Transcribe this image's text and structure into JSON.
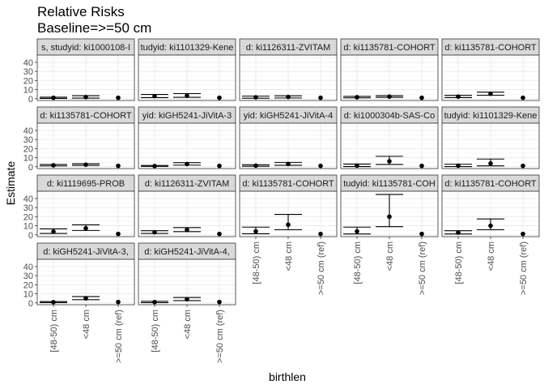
{
  "chart_data": {
    "type": "scatter",
    "title": "Relative Risks",
    "subtitle": "Baseline=>=50 cm",
    "xlabel": "birthlen",
    "ylabel": "Estimate",
    "categories": [
      "[48-50) cm",
      "<48 cm",
      ">=50 cm (ref)"
    ],
    "y_ticks": [
      0,
      10,
      20,
      30,
      40
    ],
    "ylim": [
      -2,
      48
    ],
    "grid": true,
    "panels": [
      {
        "label": "s, studyid: ki1000108-I",
        "estimate": [
          1.0,
          1.8,
          1.0
        ],
        "lower": [
          0.3,
          0.6,
          1.0
        ],
        "upper": [
          1.6,
          3.3,
          1.0
        ]
      },
      {
        "label": "tudyid: ki1101329-Kene",
        "estimate": [
          2.8,
          3.2,
          1.0
        ],
        "lower": [
          1.2,
          1.5,
          1.0
        ],
        "upper": [
          4.6,
          5.6,
          1.0
        ]
      },
      {
        "label": "d: ki1126311-ZVITAM",
        "estimate": [
          1.5,
          1.9,
          1.0
        ],
        "lower": [
          0.5,
          0.8,
          1.0
        ],
        "upper": [
          2.8,
          3.2,
          1.0
        ]
      },
      {
        "label": "d: ki1135781-COHORT",
        "estimate": [
          1.6,
          2.3,
          1.0
        ],
        "lower": [
          0.9,
          1.5,
          1.0
        ],
        "upper": [
          2.5,
          3.3,
          1.0
        ]
      },
      {
        "label": "d: ki1135781-COHORT",
        "estimate": [
          2.3,
          5.4,
          1.0
        ],
        "lower": [
          1.2,
          3.8,
          1.0
        ],
        "upper": [
          3.6,
          7.2,
          1.0
        ]
      },
      {
        "label": "d: ki1135781-COHORT",
        "estimate": [
          1.6,
          2.3,
          1.0
        ],
        "lower": [
          0.9,
          1.5,
          1.0
        ],
        "upper": [
          2.5,
          3.3,
          1.0
        ]
      },
      {
        "label": "yid: kiGH5241-JiVitA-3",
        "estimate": [
          0.8,
          3.0,
          1.0
        ],
        "lower": [
          0.4,
          1.8,
          1.0
        ],
        "upper": [
          1.4,
          4.5,
          1.0
        ]
      },
      {
        "label": "yid: kiGH5241-JiVitA-4",
        "estimate": [
          1.2,
          3.0,
          1.0
        ],
        "lower": [
          0.5,
          1.6,
          1.0
        ],
        "upper": [
          2.2,
          4.8,
          1.0
        ]
      },
      {
        "label": "d: ki1000304b-SAS-Co",
        "estimate": [
          1.2,
          6.0,
          1.0
        ],
        "lower": [
          0.2,
          2.5,
          1.0
        ],
        "upper": [
          3.0,
          11.5,
          1.0
        ]
      },
      {
        "label": "tudyid: ki1101329-Kene",
        "estimate": [
          1.2,
          3.6,
          1.0
        ],
        "lower": [
          0.2,
          1.0,
          1.0
        ],
        "upper": [
          2.8,
          8.5,
          1.0
        ]
      },
      {
        "label": "d: ki1119695-PROB",
        "estimate": [
          3.5,
          7.2,
          1.0
        ],
        "lower": [
          1.5,
          4.8,
          1.0
        ],
        "upper": [
          6.5,
          11.0,
          1.0
        ]
      },
      {
        "label": "d: ki1126311-ZVITAM",
        "estimate": [
          2.8,
          5.5,
          1.0
        ],
        "lower": [
          1.5,
          3.5,
          1.0
        ],
        "upper": [
          4.5,
          8.0,
          1.0
        ]
      },
      {
        "label": "d: ki1135781-COHORT",
        "estimate": [
          3.8,
          11.2,
          1.0
        ],
        "lower": [
          1.2,
          5.6,
          1.0
        ],
        "upper": [
          8.5,
          22.5,
          1.0
        ]
      },
      {
        "label": "tudyid: ki1135781-COH",
        "estimate": [
          3.8,
          20.0,
          1.0
        ],
        "lower": [
          1.0,
          9.0,
          1.0
        ],
        "upper": [
          8.5,
          44.5,
          1.0
        ]
      },
      {
        "label": "d: ki1135781-COHORT",
        "estimate": [
          2.5,
          10.0,
          1.0
        ],
        "lower": [
          1.0,
          5.6,
          1.0
        ],
        "upper": [
          4.5,
          17.5,
          1.0
        ]
      },
      {
        "label": "d: kiGH5241-JiVitA-3,",
        "estimate": [
          0.8,
          5.0,
          1.0
        ],
        "lower": [
          0.3,
          3.5,
          1.0
        ],
        "upper": [
          1.5,
          7.0,
          1.0
        ]
      },
      {
        "label": "d: kiGH5241-JiVitA-4,",
        "estimate": [
          0.9,
          4.0,
          1.0
        ],
        "lower": [
          0.3,
          2.5,
          1.0
        ],
        "upper": [
          1.8,
          6.0,
          1.0
        ]
      }
    ]
  }
}
